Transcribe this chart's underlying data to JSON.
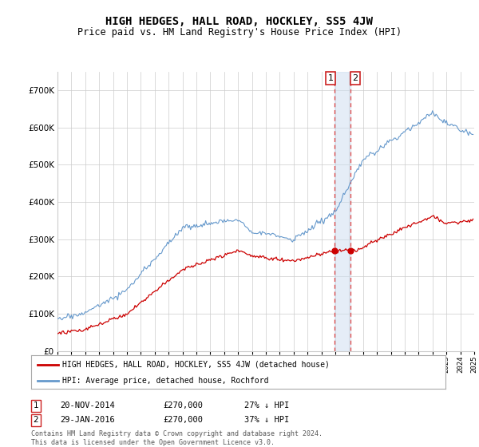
{
  "title": "HIGH HEDGES, HALL ROAD, HOCKLEY, SS5 4JW",
  "subtitle": "Price paid vs. HM Land Registry's House Price Index (HPI)",
  "legend_line1": "HIGH HEDGES, HALL ROAD, HOCKLEY, SS5 4JW (detached house)",
  "legend_line2": "HPI: Average price, detached house, Rochford",
  "annotation1_date": "20-NOV-2014",
  "annotation1_price": "£270,000",
  "annotation1_hpi": "27% ↓ HPI",
  "annotation2_date": "29-JAN-2016",
  "annotation2_price": "£270,000",
  "annotation2_hpi": "37% ↓ HPI",
  "footer": "Contains HM Land Registry data © Crown copyright and database right 2024.\nThis data is licensed under the Open Government Licence v3.0.",
  "red_color": "#cc0000",
  "blue_color": "#6699cc",
  "dashed_red": "#dd4444",
  "background_color": "#ffffff",
  "grid_color": "#cccccc",
  "ylim": [
    0,
    750000
  ],
  "yticks": [
    0,
    100000,
    200000,
    300000,
    400000,
    500000,
    600000,
    700000
  ],
  "ytick_labels": [
    "£0",
    "£100K",
    "£200K",
    "£300K",
    "£400K",
    "£500K",
    "£600K",
    "£700K"
  ],
  "t_ann1": 2014.917,
  "t_ann2": 2016.083,
  "ann_price": 270000
}
